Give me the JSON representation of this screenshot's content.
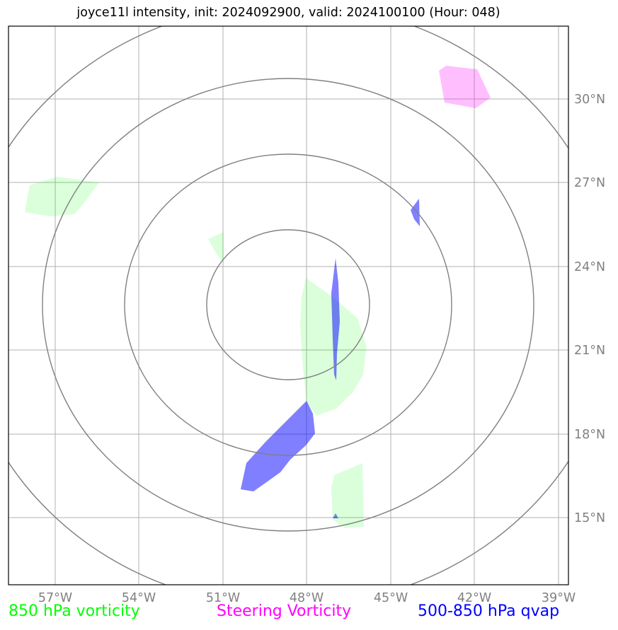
{
  "title": "joyce11l intensity, init: 2024092900, valid: 2024100100 (Hour: 048)",
  "map": {
    "lon_ticks": [
      "57°W",
      "54°W",
      "51°W",
      "48°W",
      "45°W",
      "42°W",
      "39°W"
    ],
    "lat_ticks": [
      "30°N",
      "27°N",
      "24°N",
      "21°N",
      "18°N",
      "15°N"
    ],
    "range_rings_count": 4,
    "colors": {
      "vorticity_850": "#00ff00",
      "steering_vorticity": "#ff00ff",
      "qvap_500_850": "#0000ff",
      "rings": "#808080",
      "grid": "#b0b0b0"
    }
  },
  "legend": {
    "vorticity_850": "850 hPa vorticity",
    "steering_vorticity": "Steering Vorticity",
    "qvap_500_850": "500-850 hPa qvap"
  }
}
